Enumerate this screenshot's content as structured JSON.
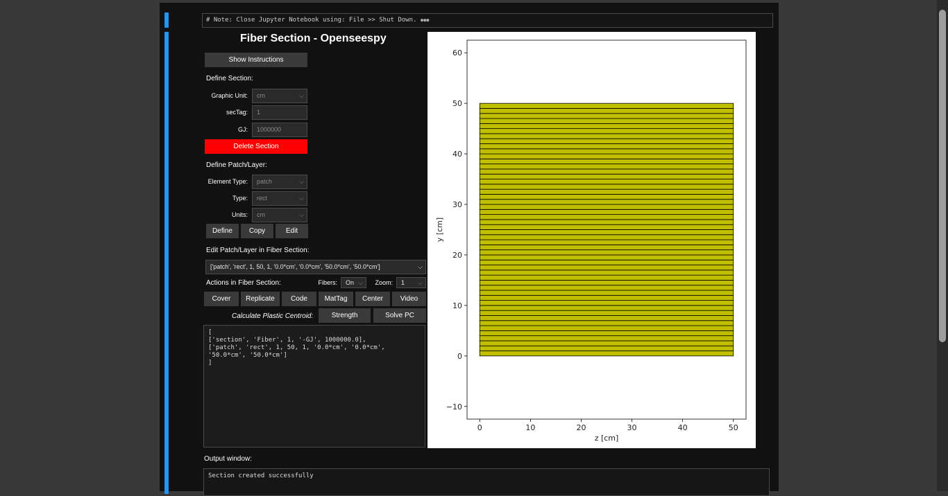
{
  "note": "# Note: Close Jupyter Notebook using: File >> Shut Down.",
  "note_ellipsis": "●●●",
  "title": "Fiber Section - Openseespy",
  "show_instructions": "Show Instructions",
  "define_section": {
    "heading": "Define Section:",
    "graphic_unit_label": "Graphic Unit:",
    "graphic_unit_value": "cm",
    "sectag_label": "secTag:",
    "sectag_value": "1",
    "gj_label": "GJ:",
    "gj_value": "1000000",
    "delete_button": "Delete Section"
  },
  "define_patch": {
    "heading": "Define Patch/Layer:",
    "element_type_label": "Element Type:",
    "element_type_value": "patch",
    "type_label": "Type:",
    "type_value": "rect",
    "units_label": "Units:",
    "units_value": "cm",
    "define_button": "Define",
    "copy_button": "Copy",
    "edit_button": "Edit"
  },
  "edit_patch": {
    "heading": "Edit Patch/Layer in Fiber Section:",
    "selected": "['patch', 'rect', 1, 50, 1, '0.0*cm', '0.0*cm', '50.0*cm', '50.0*cm']"
  },
  "actions": {
    "heading": "Actions in Fiber Section:",
    "fibers_label": "Fibers:",
    "fibers_value": "On",
    "zoom_label": "Zoom:",
    "zoom_value": "1",
    "buttons": [
      "Cover",
      "Replicate",
      "Code",
      "MatTag",
      "Center",
      "Video"
    ]
  },
  "plastic": {
    "label": "Calculate Plastic Centroid:",
    "strength_button": "Strength",
    "solve_button": "Solve PC"
  },
  "code_text": "[\n['section', 'Fiber', 1, '-GJ', 1000000.0],\n['patch', 'rect', 1, 50, 1, '0.0*cm', '0.0*cm',\n'50.0*cm', '50.0*cm']\n]",
  "output": {
    "label": "Output window:",
    "text": "Section created successfully"
  },
  "chart_data": {
    "type": "patch",
    "xlabel": "z [cm]",
    "ylabel": "y [cm]",
    "xlim": [
      -2.5,
      52.5
    ],
    "ylim": [
      -12.5,
      62.5
    ],
    "xticks": [
      0,
      10,
      20,
      30,
      40,
      50
    ],
    "yticks": [
      -10,
      0,
      10,
      20,
      30,
      40,
      50,
      60
    ],
    "patch": {
      "z0": 0,
      "y0": 0,
      "z1": 50,
      "y1": 50,
      "fibers_y": 50,
      "fibers_z": 1
    },
    "fill_color": "#bfbf00",
    "edge_color": "#000000"
  }
}
